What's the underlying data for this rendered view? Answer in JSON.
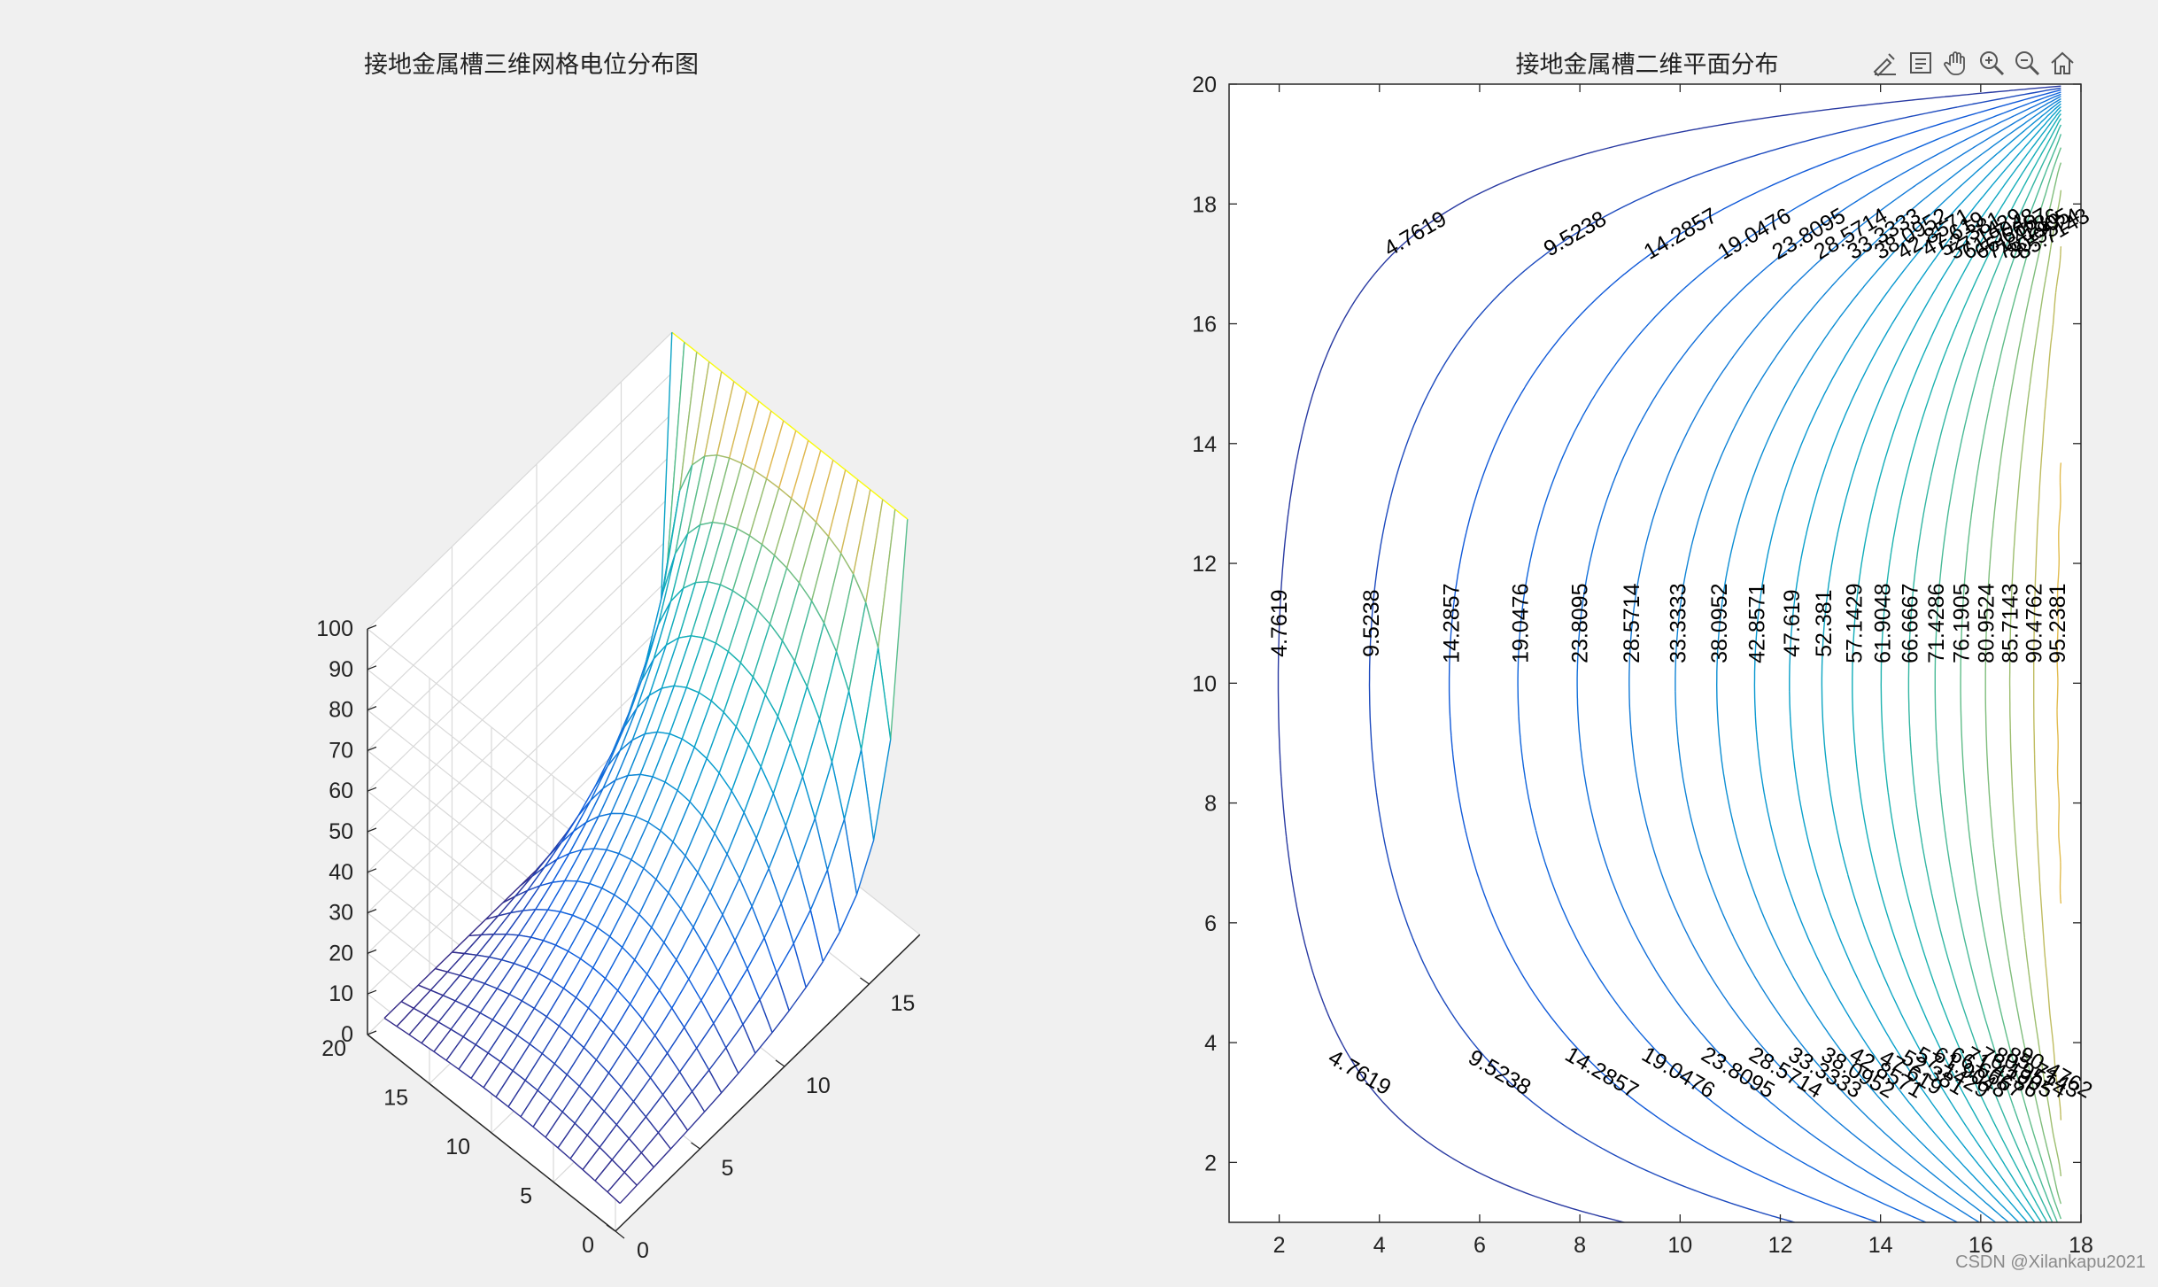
{
  "toolbar": {
    "icons": [
      "brush-icon",
      "datatip-icon",
      "pan-icon",
      "zoom-in-icon",
      "zoom-out-icon",
      "home-icon"
    ]
  },
  "watermark": "CSDN @Xilankapu2021",
  "chart_data": [
    {
      "type": "surface",
      "title": "接地金属槽三维网格电位分布图",
      "xlabel": "",
      "ylabel": "",
      "zlabel": "",
      "xlim": [
        0,
        18
      ],
      "ylim": [
        0,
        20
      ],
      "zlim": [
        0,
        100
      ],
      "xticks": [
        0,
        5,
        10,
        15
      ],
      "yticks": [
        0,
        5,
        10,
        15,
        20
      ],
      "zticks": [
        0,
        10,
        20,
        30,
        40,
        50,
        60,
        70,
        80,
        90,
        100
      ],
      "grid": true,
      "colormap": "parula",
      "boundary": {
        "x=18": 100,
        "x=0": 0,
        "y=0": 0,
        "y=20": 0
      },
      "grid_size": [
        18,
        20
      ]
    },
    {
      "type": "contour",
      "title": "接地金属槽二维平面分布",
      "xlabel": "",
      "ylabel": "",
      "xlim": [
        1,
        18
      ],
      "ylim": [
        1,
        20
      ],
      "xticks": [
        2,
        4,
        6,
        8,
        10,
        12,
        14,
        16,
        18
      ],
      "yticks": [
        2,
        4,
        6,
        8,
        10,
        12,
        14,
        16,
        18,
        20
      ],
      "levels": [
        4.7619,
        9.5238,
        14.2857,
        19.0476,
        23.8095,
        28.5714,
        33.3333,
        38.0952,
        42.8571,
        47.619,
        52.381,
        57.1429,
        61.9048,
        66.6667,
        71.4286,
        76.1905,
        80.9524,
        85.7143,
        90.4762,
        95.2381
      ],
      "level_labels": [
        "4.7619",
        "9.5238",
        "14.2857",
        "19.0476",
        "23.8095",
        "28.5714",
        "33.3333",
        "38.0952",
        "42.8571",
        "47.619",
        "52.381",
        "57.1429",
        "61.9048",
        "66.6667",
        "71.4286",
        "76.1905",
        "80.9524",
        "85.7143",
        "90.4762",
        "95.2381"
      ],
      "colormap": "parula",
      "grid": false
    }
  ]
}
